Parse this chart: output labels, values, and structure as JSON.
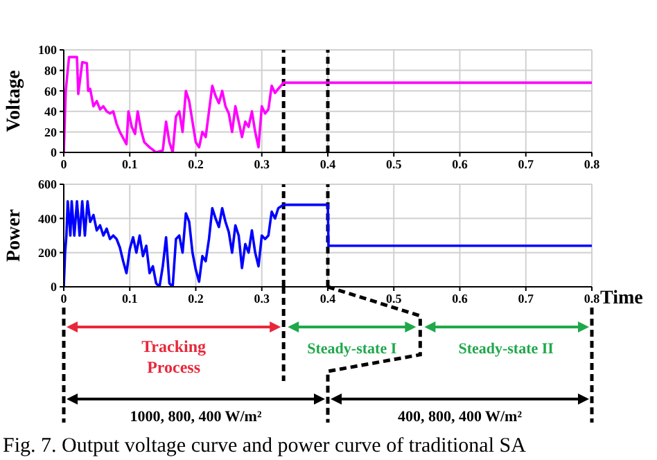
{
  "chart_data": [
    {
      "type": "line",
      "ylabel": "Voltage",
      "xlim": [
        0,
        0.8
      ],
      "xticks": [
        0,
        0.1,
        0.2,
        0.3,
        0.4,
        0.5,
        0.6,
        0.7,
        0.8
      ],
      "ylim": [
        0,
        100
      ],
      "yticks": [
        0,
        20,
        40,
        60,
        80,
        100
      ],
      "grid": true,
      "marker": "none",
      "ref_lines": [
        {
          "axis": "x",
          "value": 0.333,
          "color": "#000000",
          "line_style": "dashed"
        },
        {
          "axis": "x",
          "value": 0.4,
          "color": "#000000",
          "line_style": "dashed"
        }
      ],
      "series": [
        {
          "color": "#ff00ff",
          "x": [
            0,
            0.003,
            0.008,
            0.02,
            0.022,
            0.028,
            0.035,
            0.037,
            0.04,
            0.045,
            0.05,
            0.055,
            0.06,
            0.065,
            0.07,
            0.075,
            0.08,
            0.085,
            0.09,
            0.095,
            0.098,
            0.103,
            0.108,
            0.112,
            0.117,
            0.122,
            0.13,
            0.14,
            0.15,
            0.155,
            0.16,
            0.165,
            0.17,
            0.175,
            0.18,
            0.185,
            0.19,
            0.195,
            0.2,
            0.205,
            0.21,
            0.215,
            0.22,
            0.225,
            0.23,
            0.235,
            0.24,
            0.245,
            0.25,
            0.255,
            0.26,
            0.265,
            0.27,
            0.275,
            0.28,
            0.285,
            0.29,
            0.295,
            0.3,
            0.305,
            0.31,
            0.315,
            0.32,
            0.325,
            0.333,
            0.8
          ],
          "values": [
            0,
            60,
            93,
            93,
            57,
            88,
            87,
            60,
            62,
            45,
            50,
            42,
            45,
            40,
            38,
            40,
            28,
            20,
            14,
            8,
            40,
            25,
            18,
            40,
            22,
            10,
            5,
            0,
            2,
            30,
            10,
            0,
            35,
            40,
            20,
            60,
            50,
            30,
            10,
            5,
            20,
            15,
            40,
            65,
            55,
            48,
            60,
            45,
            38,
            20,
            45,
            30,
            15,
            30,
            25,
            40,
            20,
            5,
            45,
            38,
            42,
            65,
            58,
            62,
            68,
            68
          ]
        }
      ]
    },
    {
      "type": "line",
      "ylabel": "Power",
      "xlabel": "Time",
      "xlim": [
        0,
        0.8
      ],
      "xticks": [
        0,
        0.1,
        0.2,
        0.3,
        0.4,
        0.5,
        0.6,
        0.7,
        0.8
      ],
      "ylim": [
        0,
        600
      ],
      "yticks": [
        0,
        200,
        400,
        600
      ],
      "grid": true,
      "marker": "none",
      "ref_lines": [
        {
          "axis": "x",
          "value": 0.333,
          "color": "#000000",
          "line_style": "dashed"
        },
        {
          "axis": "x",
          "value": 0.4,
          "color": "#000000",
          "line_style": "dashed"
        }
      ],
      "series": [
        {
          "color": "#0000ff",
          "x": [
            0,
            0.002,
            0.004,
            0.006,
            0.01,
            0.012,
            0.016,
            0.02,
            0.024,
            0.028,
            0.032,
            0.036,
            0.04,
            0.045,
            0.05,
            0.055,
            0.06,
            0.065,
            0.07,
            0.075,
            0.08,
            0.085,
            0.09,
            0.095,
            0.1,
            0.105,
            0.11,
            0.115,
            0.12,
            0.125,
            0.13,
            0.135,
            0.14,
            0.145,
            0.15,
            0.155,
            0.16,
            0.165,
            0.17,
            0.175,
            0.18,
            0.185,
            0.19,
            0.195,
            0.2,
            0.205,
            0.21,
            0.215,
            0.22,
            0.225,
            0.23,
            0.235,
            0.24,
            0.245,
            0.25,
            0.255,
            0.26,
            0.265,
            0.27,
            0.275,
            0.28,
            0.285,
            0.29,
            0.295,
            0.3,
            0.305,
            0.31,
            0.315,
            0.32,
            0.325,
            0.333,
            0.4,
            0.401,
            0.8
          ],
          "values": [
            0,
            200,
            300,
            500,
            300,
            500,
            300,
            500,
            300,
            500,
            300,
            500,
            380,
            420,
            330,
            360,
            300,
            340,
            280,
            300,
            280,
            230,
            150,
            80,
            220,
            290,
            200,
            300,
            180,
            240,
            80,
            120,
            20,
            0,
            120,
            290,
            20,
            0,
            280,
            300,
            200,
            430,
            380,
            200,
            100,
            30,
            180,
            150,
            280,
            460,
            400,
            350,
            460,
            380,
            320,
            200,
            360,
            300,
            110,
            250,
            200,
            330,
            200,
            120,
            300,
            280,
            300,
            440,
            400,
            460,
            480,
            480,
            240,
            240
          ]
        }
      ],
      "annotations": [
        "Tracking Process",
        "Steady-state I",
        "Steady-state II",
        "1000, 800, 400 W/m²",
        "400, 800, 400 W/m²",
        "Fig. 7. Output voltage curve and power curve of traditional SA"
      ]
    }
  ]
}
